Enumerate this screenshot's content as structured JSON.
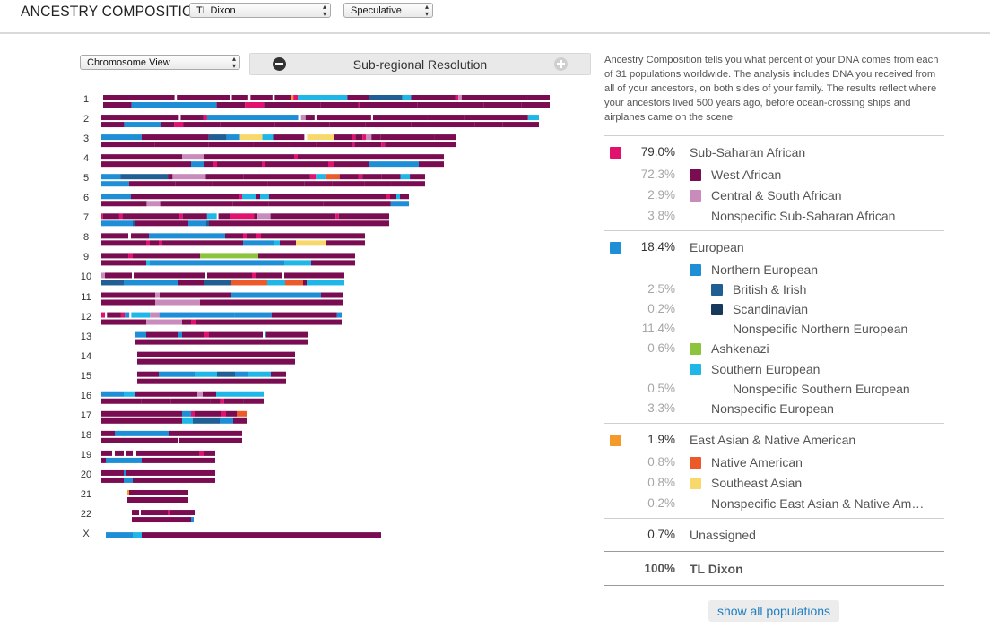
{
  "header": {
    "title": "ANCESTRY COMPOSITION",
    "profile_select": "TL Dixon",
    "mode_select": "Speculative"
  },
  "controls": {
    "view_select": "Chromosome View",
    "resolution_label": "Sub-regional Resolution"
  },
  "colors": {
    "west_african": "#7a0d52",
    "central_south_african": "#c98bbc",
    "sub_saharan": "#e0126e",
    "northern_european": "#1e8ed6",
    "british_irish": "#1f5f93",
    "scandinavian": "#17395c",
    "ashkenazi": "#8cc43e",
    "southern_european": "#1fb6e8",
    "east_asian_native": "#f39a2b",
    "native_american": "#ec5a2a",
    "southeast_asian": "#f7d96b",
    "unassigned": "#ffffff"
  },
  "description": "Ancestry Composition tells you what percent of your DNA comes from each of 31 populations worldwide. The analysis includes DNA you received from all of your ancestors, on both sides of your family. The results reflect where your ancestors lived 500 years ago, before ocean-crossing ships and airplanes came on the scene.",
  "legend": {
    "rows": [
      {
        "pct": "79.0%",
        "label": "Sub-Saharan African",
        "color": "#e0126e",
        "level": 0
      },
      {
        "pct": "72.3%",
        "label": "West African",
        "color": "#7a0d52",
        "level": 1
      },
      {
        "pct": "2.9%",
        "label": "Central & South African",
        "color": "#c98bbc",
        "level": 1
      },
      {
        "pct": "3.8%",
        "label": "Nonspecific Sub-Saharan African",
        "color": "",
        "level": 1
      },
      {
        "pct": "18.4%",
        "label": "European",
        "color": "#1e8ed6",
        "level": 0
      },
      {
        "pct": "",
        "label": "Northern European",
        "color": "#1e8ed6",
        "level": 1
      },
      {
        "pct": "2.5%",
        "label": "British & Irish",
        "color": "#1f5f93",
        "level": 2
      },
      {
        "pct": "0.2%",
        "label": "Scandinavian",
        "color": "#17395c",
        "level": 2
      },
      {
        "pct": "11.4%",
        "label": "Nonspecific Northern European",
        "color": "",
        "level": 2
      },
      {
        "pct": "0.6%",
        "label": "Ashkenazi",
        "color": "#8cc43e",
        "level": 1
      },
      {
        "pct": "",
        "label": "Southern European",
        "color": "#1fb6e8",
        "level": 1
      },
      {
        "pct": "0.5%",
        "label": "Nonspecific Southern European",
        "color": "",
        "level": 2
      },
      {
        "pct": "3.3%",
        "label": "Nonspecific European",
        "color": "",
        "level": 1
      },
      {
        "pct": "1.9%",
        "label": "East Asian & Native American",
        "color": "#f39a2b",
        "level": 0
      },
      {
        "pct": "0.8%",
        "label": "Native American",
        "color": "#ec5a2a",
        "level": 1
      },
      {
        "pct": "0.8%",
        "label": "Southeast Asian",
        "color": "#f7d96b",
        "level": 1
      },
      {
        "pct": "0.2%",
        "label": "Nonspecific East Asian & Native Am…",
        "color": "",
        "level": 1
      },
      {
        "pct": "0.7%",
        "label": "Unassigned",
        "color": "",
        "level": 0
      },
      {
        "pct": "100%",
        "label": "TL Dixon",
        "color": "",
        "level": 0,
        "bold": true
      }
    ]
  },
  "show_all_label": "show all populations",
  "chromosomes": [
    {
      "label": "1"
    },
    {
      "label": "2"
    },
    {
      "label": "3"
    },
    {
      "label": "4"
    },
    {
      "label": "5"
    },
    {
      "label": "6"
    },
    {
      "label": "7"
    },
    {
      "label": "8"
    },
    {
      "label": "9"
    },
    {
      "label": "10"
    },
    {
      "label": "11"
    },
    {
      "label": "12"
    },
    {
      "label": "13"
    },
    {
      "label": "14"
    },
    {
      "label": "15"
    },
    {
      "label": "16"
    },
    {
      "label": "17"
    },
    {
      "label": "18"
    },
    {
      "label": "19"
    },
    {
      "label": "20"
    },
    {
      "label": "21"
    },
    {
      "label": "22"
    },
    {
      "label": "X"
    }
  ]
}
